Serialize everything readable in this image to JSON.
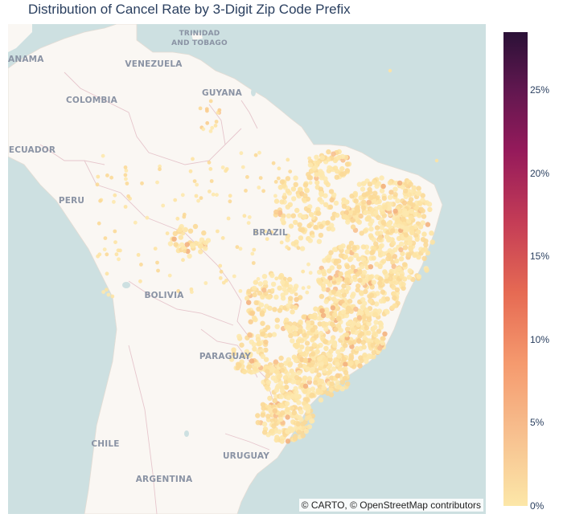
{
  "title": "Distribution of Cancel Rate by 3-Digit Zip Code Prefix",
  "attribution": "© CARTO, © OpenStreetMap contributors",
  "colors": {
    "ocean": "#cde0e1",
    "land": "#faf7f3",
    "border": "#e6c6cc",
    "label": "#8a93a4",
    "point_low": "#fce7a8",
    "point_mid": "#f7c08f"
  },
  "labels": {
    "panama": "ANAMA",
    "trinidad_1": "TRINIDAD",
    "trinidad_2": "AND TOBAGO",
    "venezuela": "VENEZUELA",
    "guyana": "GUYANA",
    "colombia": "COLOMBIA",
    "ecuador": "ECUADOR",
    "peru": "PERU",
    "brazil": "BRAZIL",
    "bolivia": "BOLIVIA",
    "paraguay": "PARAGUAY",
    "chile": "CHILE",
    "uruguay": "URUGUAY",
    "argentina": "ARGENTINA"
  },
  "colorbar": {
    "ticks": [
      {
        "label": "25%",
        "value": 0.25
      },
      {
        "label": "20%",
        "value": 0.2
      },
      {
        "label": "15%",
        "value": 0.15
      },
      {
        "label": "10%",
        "value": 0.1
      },
      {
        "label": "5%",
        "value": 0.05
      },
      {
        "label": "0%",
        "value": 0.0
      }
    ],
    "max": 0.285
  }
}
